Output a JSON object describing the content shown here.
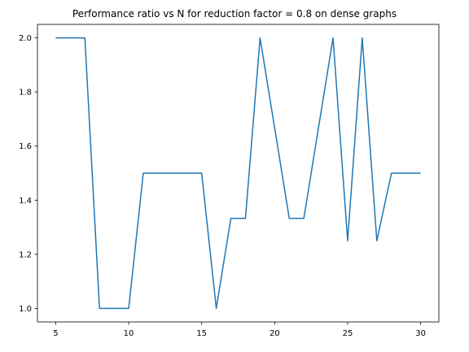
{
  "chart_data": {
    "type": "line",
    "title": "Performance ratio vs N for reduction factor = 0.8 on dense graphs",
    "xlabel": "",
    "ylabel": "",
    "xlim": [
      3.75,
      31.25
    ],
    "ylim": [
      0.95,
      2.05
    ],
    "xticks": [
      5,
      10,
      15,
      20,
      25,
      30
    ],
    "yticks": [
      1.0,
      1.2,
      1.4,
      1.6,
      1.8,
      2.0
    ],
    "grid": false,
    "series": [
      {
        "color": "#1f77b4",
        "x": [
          5,
          6,
          7,
          8,
          9,
          10,
          11,
          12,
          13,
          14,
          15,
          16,
          17,
          18,
          19,
          20,
          21,
          22,
          23,
          24,
          25,
          26,
          27,
          28,
          29,
          30
        ],
        "y": [
          2.0,
          2.0,
          2.0,
          1.0,
          1.0,
          1.0,
          1.5,
          1.5,
          1.5,
          1.5,
          1.5,
          1.0,
          1.333,
          1.333,
          2.0,
          1.667,
          1.333,
          1.333,
          1.667,
          2.0,
          1.25,
          2.0,
          1.25,
          1.5,
          1.5,
          1.5
        ]
      }
    ]
  }
}
